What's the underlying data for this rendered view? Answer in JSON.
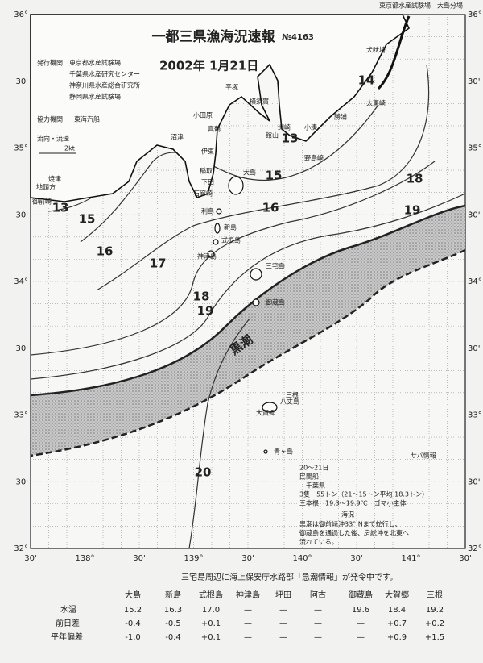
{
  "header": {
    "agency_top": "東京都水産試験場　大島分場",
    "title": "一都三県漁海況速報",
    "number": "№4163",
    "date": "2002年 1月21日"
  },
  "issuers": {
    "label": "発行機関",
    "orgs": [
      "東京都水産試験場",
      "千葉県水産研究センター",
      "神奈川県水産総合研究所",
      "静岡県水産試験場"
    ],
    "cooperation_label": "協力機関",
    "cooperation": "東海汽船"
  },
  "legend": {
    "label": "流向・流速",
    "scale": "2kt"
  },
  "map": {
    "lat_labels": [
      "36°",
      "30'",
      "35°",
      "30'",
      "34°",
      "30'",
      "33°",
      "30'",
      "32°"
    ],
    "lon_labels": [
      "30'",
      "138°",
      "30'",
      "139°",
      "30'",
      "140°",
      "30'",
      "141°",
      "30'"
    ],
    "isotherms": [
      "13",
      "13",
      "14",
      "15",
      "15",
      "16",
      "16",
      "17",
      "18",
      "18",
      "19",
      "19",
      "20"
    ],
    "kuroshio": "黒潮",
    "places": [
      "犬吠埼",
      "太東崎",
      "勝浦",
      "小湊",
      "野島崎",
      "洲崎",
      "館山",
      "横須賀",
      "平塚",
      "小田原",
      "真鶴",
      "伊東",
      "沼津",
      "稲取",
      "下田",
      "石廊崎",
      "御前崎",
      "地頭方",
      "焼津",
      "大島",
      "利島",
      "新島",
      "式根島",
      "神津島",
      "三宅島",
      "御蔵島",
      "八丈島",
      "大賀郷",
      "三根",
      "青ヶ島"
    ]
  },
  "saba": {
    "title": "サバ情報",
    "lines": [
      "20～21日",
      "民間船",
      "千葉県",
      "3隻　55トン（21～15トン平均 18.3トン）",
      "三本根　19.3～19.9℃　ゴマ小主体"
    ],
    "kaikyo_title": "海況",
    "kaikyo": [
      "黒潮は御前崎沖33° Nまで蛇行し、",
      "御蔵島を通過した後、房総沖を北東へ",
      "流れている。"
    ]
  },
  "notice": "三宅島周辺に海上保安庁水路部「急潮情報」が発令中です。",
  "table": {
    "header": [
      "大島",
      "新島",
      "式根島",
      "神津島",
      "坪田",
      "阿古",
      "御蔵島",
      "大賀郷",
      "三根"
    ],
    "rows": [
      {
        "label": "水温",
        "cells": [
          "15.2",
          "16.3",
          "17.0",
          "—",
          "—",
          "—",
          "19.6",
          "18.4",
          "19.2"
        ]
      },
      {
        "label": "前日差",
        "cells": [
          "-0.4",
          "-0.5",
          "+0.1",
          "—",
          "—",
          "—",
          "—",
          "+0.7",
          "+0.2"
        ]
      },
      {
        "label": "平年偏差",
        "cells": [
          "-1.0",
          "-0.4",
          "+0.1",
          "—",
          "—",
          "—",
          "—",
          "+0.9",
          "+1.5"
        ]
      }
    ]
  }
}
